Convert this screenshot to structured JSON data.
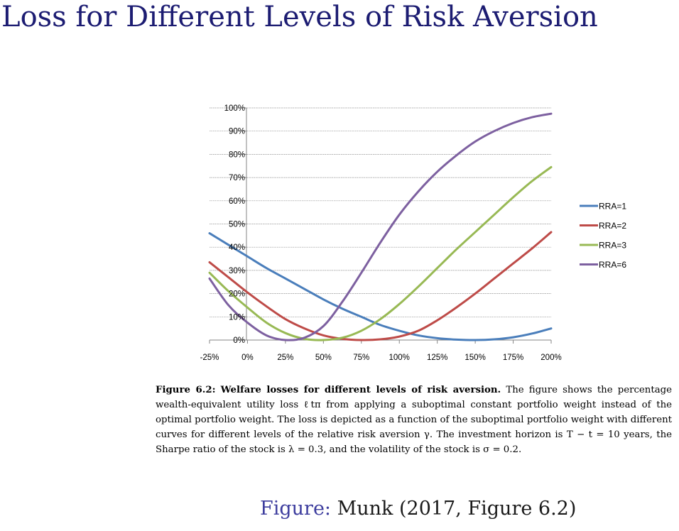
{
  "slide": {
    "title": "Loss for Different Levels of Risk Aversion"
  },
  "figure_caption": {
    "label": "Figure 6.2:",
    "bold_title": "Welfare losses for different levels of risk aversion.",
    "text": "The figure shows the percentage wealth-equivalent utility loss ℓtπ from applying a suboptimal constant portfolio weight instead of the optimal portfolio weight. The loss is depicted as a function of the suboptimal portfolio weight with different curves for different levels of the relative risk aversion γ. The investment horizon is T − t = 10 years, the Sharpe ratio of the stock is λ = 0.3, and the volatility of the stock is σ = 0.2."
  },
  "source": {
    "label": "Figure:",
    "text": "Munk (2017, Figure 6.2)"
  },
  "chart_data": {
    "type": "line",
    "title": "",
    "xlabel": "",
    "ylabel": "",
    "xlim": [
      -0.25,
      2.0
    ],
    "ylim": [
      0,
      1.0
    ],
    "x_ticks": [
      -0.25,
      0,
      0.25,
      0.5,
      0.75,
      1.0,
      1.25,
      1.5,
      1.75,
      2.0
    ],
    "x_tick_labels": [
      "-25%",
      "0%",
      "25%",
      "50%",
      "75%",
      "100%",
      "125%",
      "150%",
      "175%",
      "200%"
    ],
    "y_ticks": [
      0,
      0.1,
      0.2,
      0.3,
      0.4,
      0.5,
      0.6,
      0.7,
      0.8,
      0.9,
      1.0
    ],
    "y_tick_labels": [
      "0%",
      "10%",
      "20%",
      "30%",
      "40%",
      "50%",
      "60%",
      "70%",
      "80%",
      "90%",
      "100%"
    ],
    "grid": "horizontal",
    "legend_position": "right",
    "x": [
      -0.25,
      -0.125,
      0,
      0.125,
      0.25,
      0.375,
      0.5,
      0.625,
      0.75,
      0.875,
      1.0,
      1.125,
      1.25,
      1.375,
      1.5,
      1.625,
      1.75,
      1.875,
      2.0
    ],
    "series": [
      {
        "name": "RRA=1",
        "color": "#4a7ebb",
        "values": [
          0.46,
          0.41,
          0.36,
          0.31,
          0.265,
          0.22,
          0.175,
          0.135,
          0.1,
          0.065,
          0.04,
          0.02,
          0.008,
          0.002,
          0.0,
          0.003,
          0.012,
          0.028,
          0.05
        ]
      },
      {
        "name": "RRA=2",
        "color": "#be4b48",
        "values": [
          0.335,
          0.27,
          0.205,
          0.145,
          0.09,
          0.05,
          0.02,
          0.005,
          0.0,
          0.003,
          0.015,
          0.04,
          0.085,
          0.14,
          0.2,
          0.265,
          0.33,
          0.395,
          0.465
        ]
      },
      {
        "name": "RRA=3",
        "color": "#98b954",
        "values": [
          0.29,
          0.21,
          0.14,
          0.075,
          0.03,
          0.005,
          0.0,
          0.01,
          0.04,
          0.09,
          0.155,
          0.23,
          0.31,
          0.39,
          0.465,
          0.54,
          0.615,
          0.685,
          0.745
        ]
      },
      {
        "name": "RRA=6",
        "color": "#7d60a0",
        "values": [
          0.265,
          0.15,
          0.075,
          0.02,
          0.0,
          0.01,
          0.06,
          0.165,
          0.29,
          0.42,
          0.54,
          0.64,
          0.725,
          0.795,
          0.855,
          0.9,
          0.935,
          0.96,
          0.975
        ]
      }
    ]
  }
}
